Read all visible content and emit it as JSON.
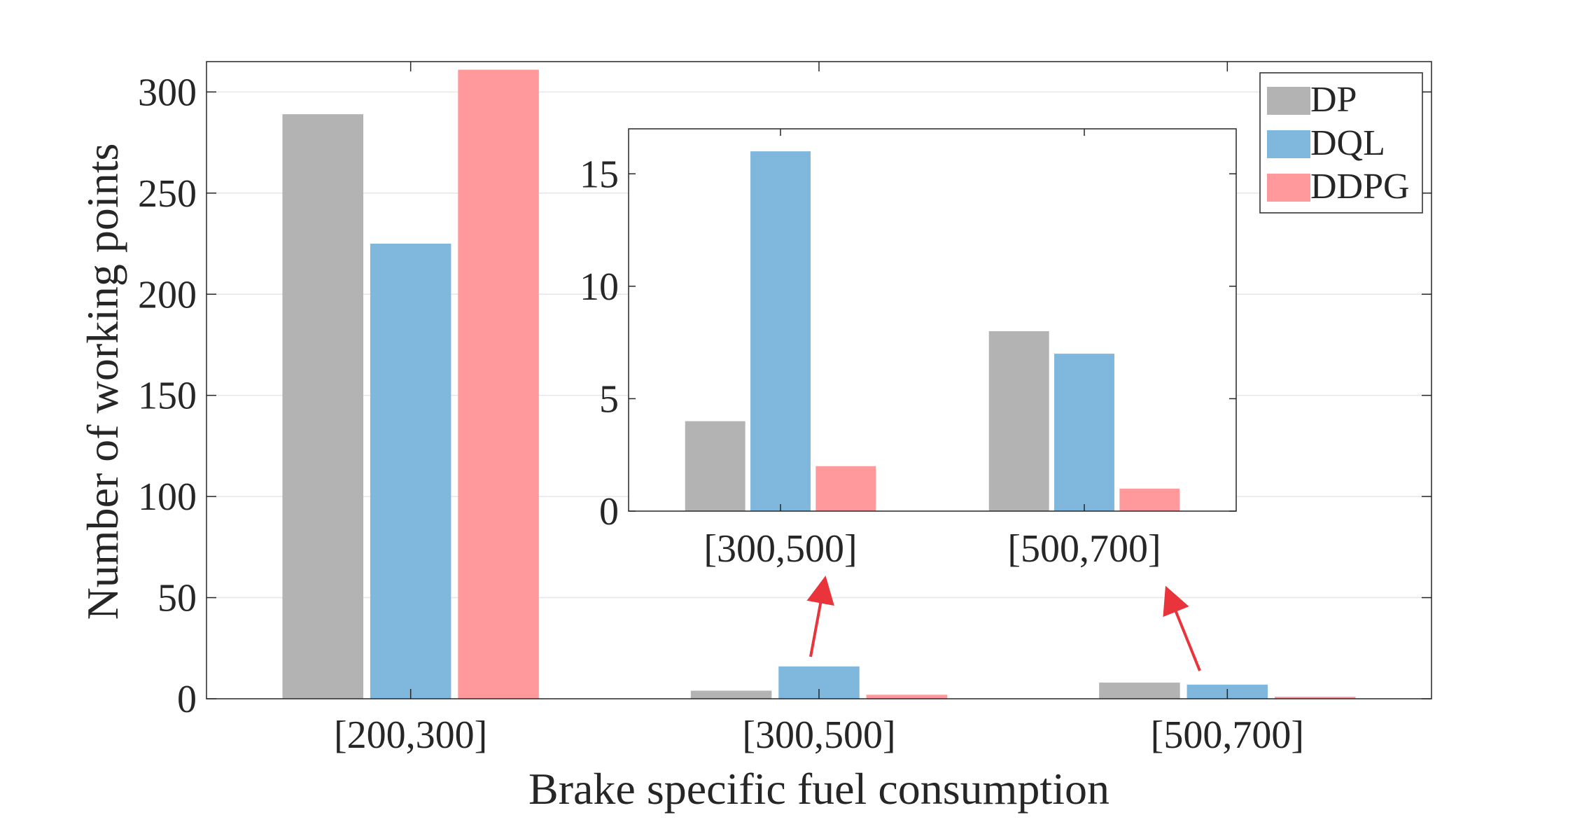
{
  "chart_data": [
    {
      "type": "bar",
      "role": "main",
      "categories": [
        "[200,300]",
        "[300,500]",
        "[500,700]"
      ],
      "series": [
        {
          "name": "DP",
          "color": "#b3b3b3",
          "values": [
            289,
            4,
            8
          ]
        },
        {
          "name": "DQL",
          "color": "#7fb7dd",
          "values": [
            225,
            16,
            7
          ]
        },
        {
          "name": "DDPG",
          "color": "#ff999b",
          "values": [
            311,
            2,
            1
          ]
        }
      ],
      "xlabel": "Brake specific fuel consumption",
      "ylabel": "Number of working points",
      "ylim": [
        0,
        315
      ],
      "yticks": [
        0,
        50,
        100,
        150,
        200,
        250,
        300
      ],
      "grid": true,
      "legend": "top-right"
    },
    {
      "type": "bar",
      "role": "inset",
      "categories": [
        "[300,500]",
        "[500,700]"
      ],
      "series": [
        {
          "name": "DP",
          "color": "#b3b3b3",
          "values": [
            4,
            8
          ]
        },
        {
          "name": "DQL",
          "color": "#7fb7dd",
          "values": [
            16,
            7
          ]
        },
        {
          "name": "DDPG",
          "color": "#ff999b",
          "values": [
            2,
            1
          ]
        }
      ],
      "ylim": [
        0,
        17
      ],
      "yticks": [
        0,
        5,
        10,
        15
      ],
      "grid": false
    }
  ],
  "annotation_color": "#e8343a"
}
